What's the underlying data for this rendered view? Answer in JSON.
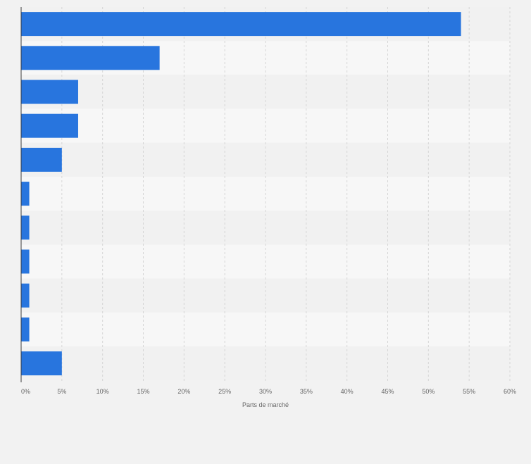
{
  "chart_data": {
    "type": "bar",
    "orientation": "horizontal",
    "title": "",
    "xlabel": "Parts de marché",
    "ylabel": "",
    "categories": [
      "",
      "",
      "",
      "",
      "",
      "",
      "",
      "",
      "",
      "",
      ""
    ],
    "values": [
      54,
      17,
      7,
      7,
      5,
      1,
      1,
      1,
      1,
      1,
      5
    ],
    "xlim": [
      0,
      60
    ],
    "xticks": [
      0,
      5,
      10,
      15,
      20,
      25,
      30,
      35,
      40,
      45,
      50,
      55,
      60
    ],
    "xtick_labels": [
      "0%",
      "5%",
      "10%",
      "15%",
      "20%",
      "25%",
      "30%",
      "35%",
      "40%",
      "45%",
      "50%",
      "55%",
      "60%"
    ],
    "grid": "vertical dashed",
    "legend": "none",
    "colors": {
      "bar": "#2875de",
      "background": "#f2f2f2",
      "row_light": "#f7f7f7",
      "row_dark": "#f1f1f1",
      "grid": "#d6d6d6",
      "axis": "#3c3c3c",
      "text": "#666666"
    }
  }
}
